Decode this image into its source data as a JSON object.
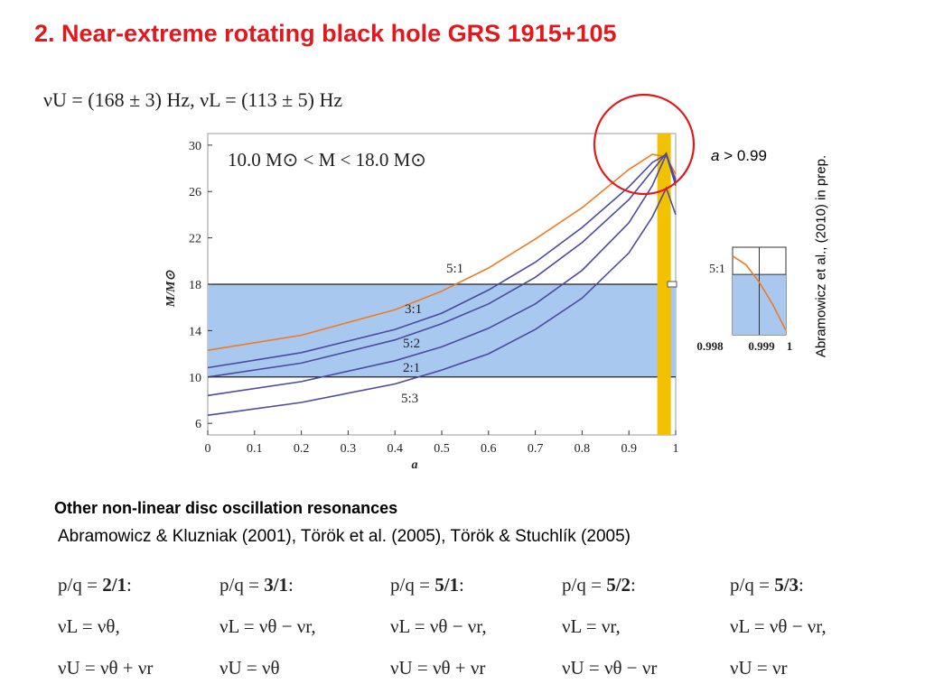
{
  "slide": {
    "title": "2. Near-extreme rotating black hole GRS 1915+105",
    "frequencies": "νU = (168 ± 3) Hz, νL = (113 ± 5) Hz",
    "mass_range": "10.0 M⊙ < M < 18.0 M⊙",
    "spin_condition_a": "a",
    "spin_condition_rest": " > 0.99",
    "side_reference": "Abramowicz et al., (2010) in prep.",
    "section_heading": "Other non-linear disc oscillation resonances",
    "references": "Abramowicz & Kluzniak (2001), Török et al. (2005), Török & Stuchlík (2005)",
    "resonances": [
      {
        "ratio_prefix": "p/q = ",
        "ratio": "2/1",
        "ratio_suffix": ":",
        "nuL": "νL = νθ,",
        "nuU": "νU = νθ + νr"
      },
      {
        "ratio_prefix": "p/q = ",
        "ratio": "3/1",
        "ratio_suffix": ":",
        "nuL": "νL = νθ − νr,",
        "nuU": "νU = νθ"
      },
      {
        "ratio_prefix": "p/q = ",
        "ratio": "5/1",
        "ratio_suffix": ":",
        "nuL": "νL = νθ − νr,",
        "nuU": "νU = νθ + νr"
      },
      {
        "ratio_prefix": "p/q = ",
        "ratio": "5/2",
        "ratio_suffix": ":",
        "nuL": "νL = νr,",
        "nuU": "νU = νθ − νr"
      },
      {
        "ratio_prefix": "p/q = ",
        "ratio": "5/3",
        "ratio_suffix": ":",
        "nuL": "νL = νθ − νr,",
        "nuU": "νU = νr"
      }
    ]
  },
  "colors": {
    "title": "#e3181c",
    "band": "#a8c8f0",
    "yellow_strip": "#f2c200",
    "orange_curve": "#f07a20",
    "blue_curve": "#4a4aa0",
    "highlight_circle": "#e3181c"
  },
  "chart_data": [
    {
      "type": "line",
      "xlabel": "a",
      "ylabel": "M/M⊙",
      "xlim": [
        0,
        1
      ],
      "ylim": [
        5,
        31
      ],
      "xticks": [
        0,
        0.1,
        0.2,
        0.3,
        0.4,
        0.5,
        0.6,
        0.7,
        0.8,
        0.9,
        1
      ],
      "xtick_labels": [
        "0",
        "0.1",
        "0.2",
        "0.3",
        "0.4",
        "0.5",
        "0.6",
        "0.7",
        "0.8",
        "0.9",
        "1"
      ],
      "yticks": [
        6,
        10,
        14,
        18,
        22,
        26,
        30
      ],
      "ytick_labels": [
        "6",
        "10",
        "14",
        "18",
        "22",
        "26",
        "30"
      ],
      "mass_band": [
        10,
        18
      ],
      "highlight_strip_x": [
        0.98,
        1.0
      ],
      "series": [
        {
          "name": "5:1",
          "color": "orange",
          "x": [
            0,
            0.2,
            0.4,
            0.5,
            0.6,
            0.7,
            0.8,
            0.9,
            0.95,
            0.98,
            1.0
          ],
          "values": [
            12.3,
            13.6,
            15.8,
            17.4,
            19.4,
            21.9,
            24.6,
            27.9,
            29.2,
            29.0,
            27.5
          ]
        },
        {
          "name": "3:1",
          "color": "blue",
          "x": [
            0,
            0.2,
            0.4,
            0.5,
            0.6,
            0.7,
            0.8,
            0.9,
            0.95,
            0.98,
            1.0
          ],
          "values": [
            10.8,
            12.1,
            14.1,
            15.5,
            17.5,
            19.9,
            22.9,
            26.4,
            28.5,
            29.2,
            26.5
          ]
        },
        {
          "name": "5:2",
          "color": "blue",
          "x": [
            0,
            0.2,
            0.4,
            0.5,
            0.6,
            0.7,
            0.8,
            0.9,
            0.95,
            0.98,
            1.0
          ],
          "values": [
            10.0,
            11.2,
            13.2,
            14.6,
            16.3,
            18.6,
            21.6,
            25.3,
            27.8,
            29.3,
            26.8
          ]
        },
        {
          "name": "2:1",
          "color": "blue",
          "x": [
            0,
            0.2,
            0.4,
            0.5,
            0.6,
            0.7,
            0.8,
            0.9,
            0.95,
            0.98,
            1.0
          ],
          "values": [
            8.4,
            9.6,
            11.4,
            12.6,
            14.2,
            16.3,
            19.2,
            23.3,
            26.5,
            29.2,
            27.0
          ]
        },
        {
          "name": "5:3",
          "color": "blue",
          "x": [
            0,
            0.2,
            0.4,
            0.5,
            0.6,
            0.7,
            0.8,
            0.9,
            0.95,
            0.98,
            1.0
          ],
          "values": [
            6.7,
            7.8,
            9.4,
            10.6,
            12.0,
            14.1,
            16.8,
            20.7,
            23.8,
            26.3,
            24.0
          ]
        }
      ],
      "series_labels": [
        "5:1",
        "3:1",
        "5:2",
        "2:1",
        "5:3"
      ]
    },
    {
      "type": "line",
      "title": "inset",
      "xlim": [
        0.998,
        1
      ],
      "xtick_labels": [
        "0.998",
        "0.999",
        "1"
      ],
      "series_label": "5:1",
      "series": [
        {
          "name": "5:1",
          "color": "orange",
          "x": [
            0.998,
            0.9985,
            0.999,
            0.9995,
            1.0
          ],
          "values": [
            0.9,
            0.8,
            0.6,
            0.35,
            0.05
          ]
        }
      ],
      "band_top_fraction": 0.69
    }
  ]
}
